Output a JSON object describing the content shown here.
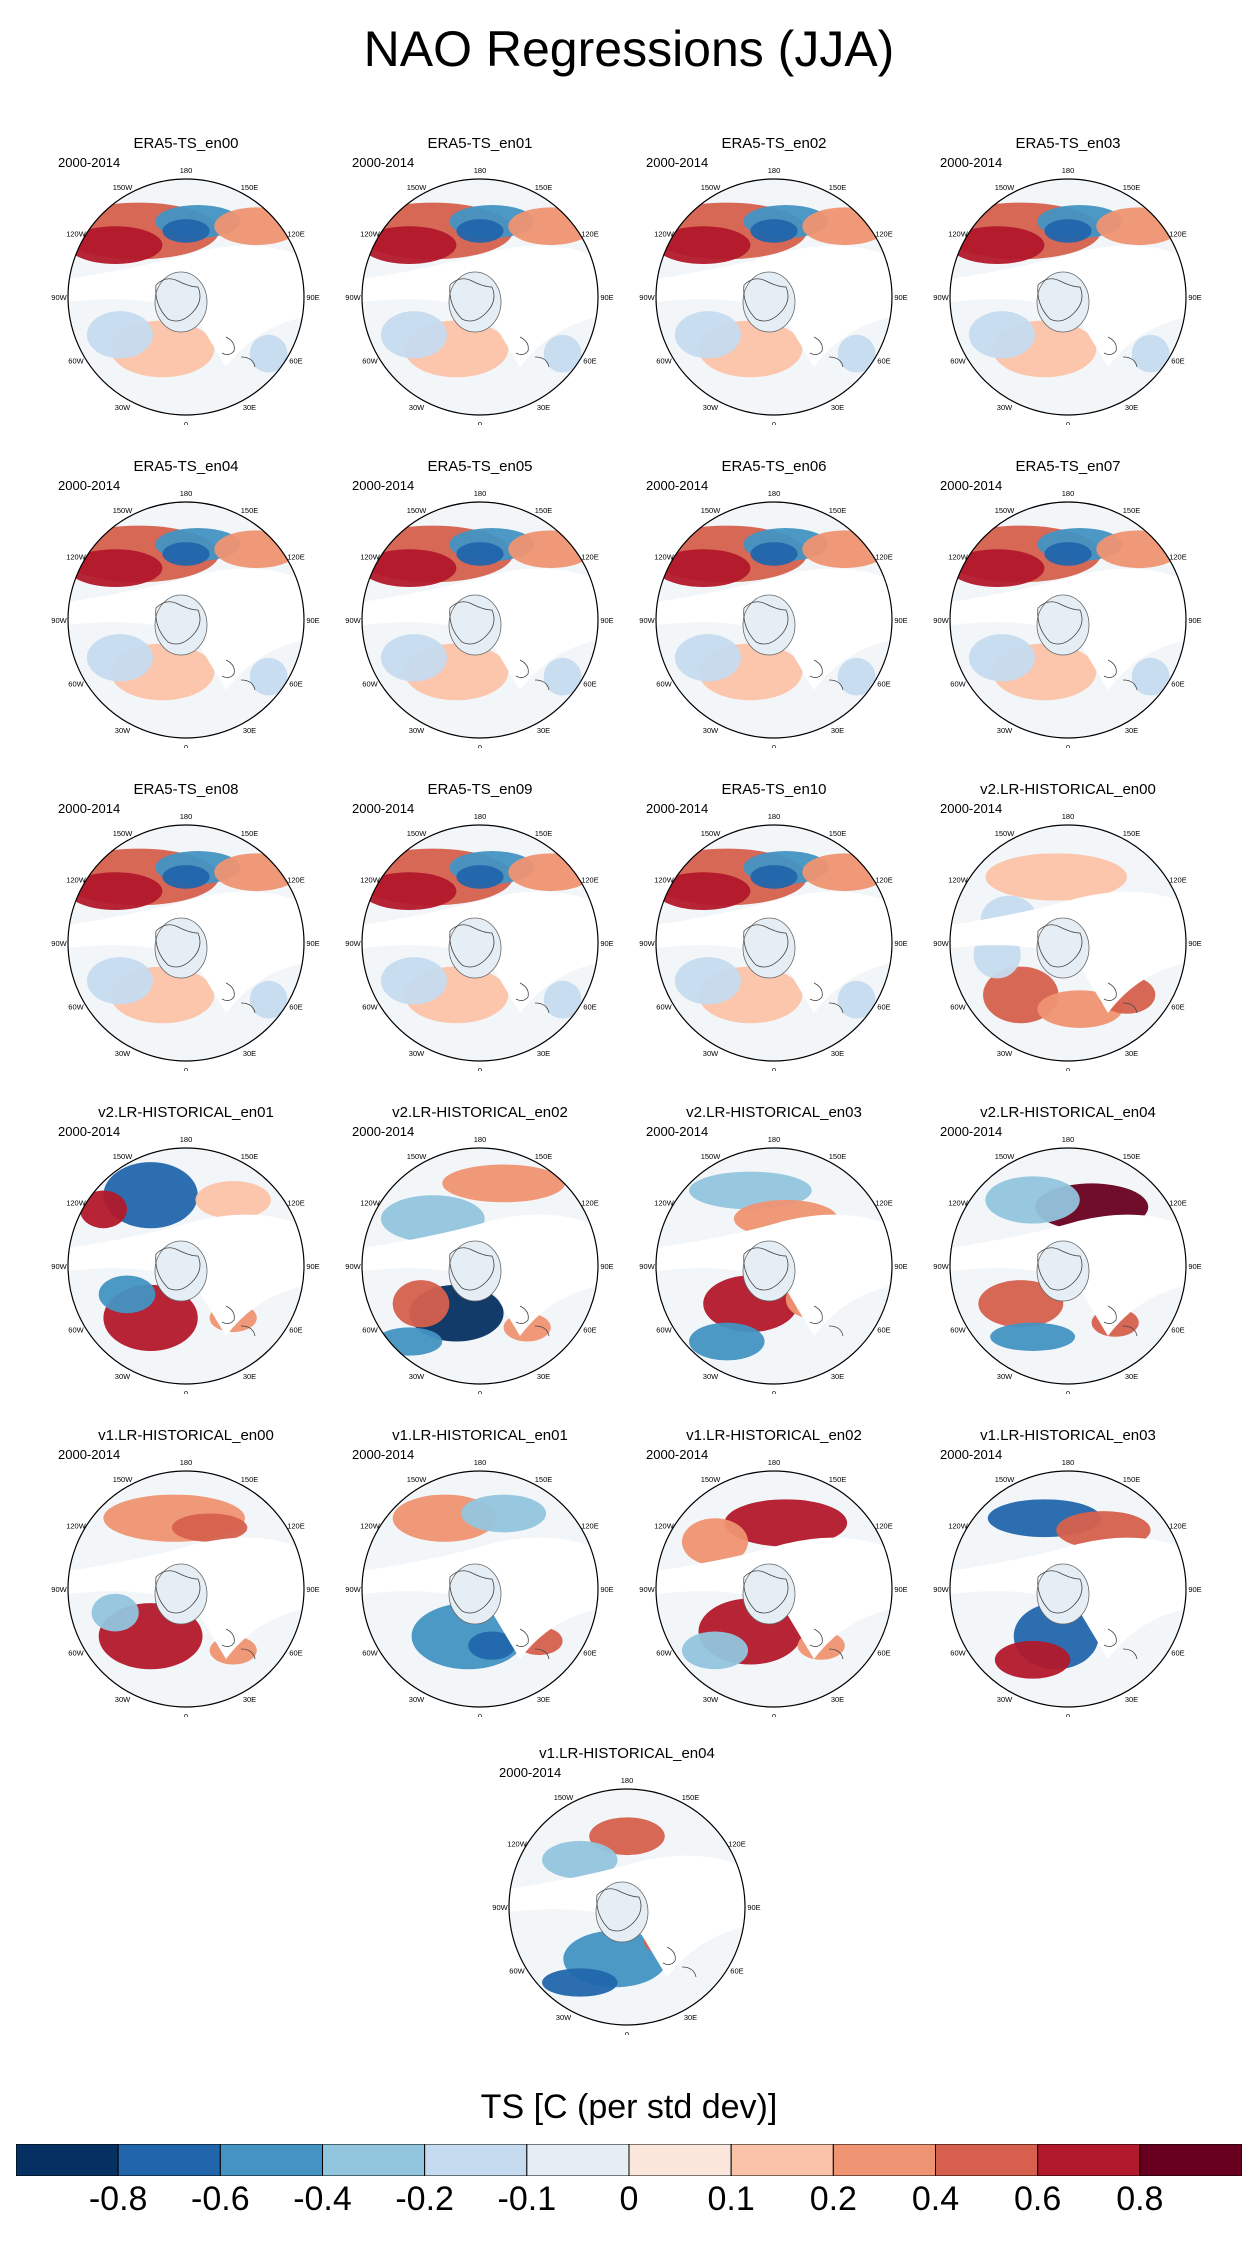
{
  "title": "NAO Regressions (JJA)",
  "years_label": "2000-2014",
  "lon_labels": [
    "180",
    "150W",
    "150E",
    "120W",
    "120E",
    "90W",
    "90E",
    "60W",
    "60E",
    "30W",
    "30E",
    "0"
  ],
  "panels": [
    {
      "title": "ERA5-TS_en00",
      "pattern": "era"
    },
    {
      "title": "ERA5-TS_en01",
      "pattern": "era"
    },
    {
      "title": "ERA5-TS_en02",
      "pattern": "era"
    },
    {
      "title": "ERA5-TS_en03",
      "pattern": "era"
    },
    {
      "title": "ERA5-TS_en04",
      "pattern": "era"
    },
    {
      "title": "ERA5-TS_en05",
      "pattern": "era"
    },
    {
      "title": "ERA5-TS_en06",
      "pattern": "era"
    },
    {
      "title": "ERA5-TS_en07",
      "pattern": "era"
    },
    {
      "title": "ERA5-TS_en08",
      "pattern": "era"
    },
    {
      "title": "ERA5-TS_en09",
      "pattern": "era"
    },
    {
      "title": "ERA5-TS_en10",
      "pattern": "era"
    },
    {
      "title": "v2.LR-HISTORICAL_en00",
      "pattern": "v2a"
    },
    {
      "title": "v2.LR-HISTORICAL_en01",
      "pattern": "v2b"
    },
    {
      "title": "v2.LR-HISTORICAL_en02",
      "pattern": "v2c"
    },
    {
      "title": "v2.LR-HISTORICAL_en03",
      "pattern": "v2d"
    },
    {
      "title": "v2.LR-HISTORICAL_en04",
      "pattern": "v2e"
    },
    {
      "title": "v1.LR-HISTORICAL_en00",
      "pattern": "v1a"
    },
    {
      "title": "v1.LR-HISTORICAL_en01",
      "pattern": "v1b"
    },
    {
      "title": "v1.LR-HISTORICAL_en02",
      "pattern": "v1c"
    },
    {
      "title": "v1.LR-HISTORICAL_en03",
      "pattern": "v1d"
    },
    {
      "title": "v1.LR-HISTORICAL_en04",
      "pattern": "v1e"
    }
  ],
  "colorbar": {
    "title": "TS [C (per std dev)]",
    "colors": [
      "#053061",
      "#2166ac",
      "#4393c3",
      "#92c5de",
      "#c6dbef",
      "#e6eef5",
      "#fbe6dc",
      "#fbc3a8",
      "#ef9472",
      "#d6604d",
      "#b2182b",
      "#67001f"
    ],
    "labels": [
      "-0.8",
      "-0.6",
      "-0.4",
      "-0.2",
      "-0.1",
      "0",
      "0.1",
      "0.2",
      "0.4",
      "0.6",
      "0.8"
    ]
  }
}
